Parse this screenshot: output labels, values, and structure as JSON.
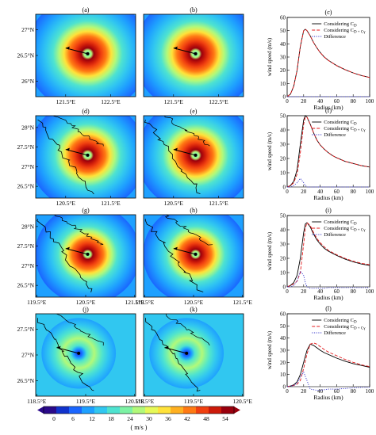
{
  "chart_data": {
    "type": "figure",
    "colorbar": {
      "ticks": [
        "0",
        "6",
        "12",
        "18",
        "24",
        "30",
        "36",
        "42",
        "48",
        "54"
      ],
      "unit": "( m/s )",
      "colors": [
        "#2a0a8a",
        "#1133cc",
        "#1a66ff",
        "#1ea0ff",
        "#31c7f0",
        "#4ee3d0",
        "#7df2a4",
        "#b2f97a",
        "#e6f957",
        "#ffe23a",
        "#ffb020",
        "#ff7a14",
        "#f04010",
        "#cc1a0a",
        "#99000d"
      ]
    },
    "maps": [
      {
        "label": "(a)",
        "yticks": [
          "27°N",
          "26.5°N",
          "26°N"
        ],
        "xticks": [
          "121.5°E",
          "122.5°E"
        ],
        "has_coast": false,
        "size": 1.0,
        "weak_center": false
      },
      {
        "label": "(b)",
        "yticks": [],
        "xticks": [
          "121.5°E",
          "122.5°E"
        ],
        "has_coast": false,
        "size": 1.0,
        "weak_center": false
      },
      {
        "label": "(d)",
        "yticks": [
          "28°N",
          "27.5°N",
          "27°N",
          "26.5°N"
        ],
        "xticks": [
          "120.5°E",
          "121.5°E"
        ],
        "has_coast": true,
        "size": 0.95,
        "weak_center": false
      },
      {
        "label": "(e)",
        "yticks": [],
        "xticks": [
          "120.5°E",
          "121.5°E"
        ],
        "has_coast": true,
        "size": 0.95,
        "weak_center": false
      },
      {
        "label": "(g)",
        "yticks": [
          "28°N",
          "27.5°N",
          "27°N",
          "26.5°N"
        ],
        "xticks": [
          "119.5°E",
          "120.5°E",
          "121.5°E"
        ],
        "has_coast": true,
        "size": 0.85,
        "weak_center": false
      },
      {
        "label": "(h)",
        "yticks": [],
        "xticks": [
          "119.5°E",
          "120.5°E",
          "121.5°E"
        ],
        "has_coast": true,
        "size": 0.85,
        "weak_center": false
      },
      {
        "label": "(j)",
        "yticks": [
          "27.5°N",
          "27°N",
          "26.5°N"
        ],
        "xticks": [
          "118.5°E",
          "119.5°E",
          "120.5°E"
        ],
        "has_coast": true,
        "size": 0.6,
        "weak_center": true
      },
      {
        "label": "(k)",
        "yticks": [],
        "xticks": [
          "118.5°E",
          "119.5°E",
          "120.5°E"
        ],
        "has_coast": true,
        "size": 0.6,
        "weak_center": true
      }
    ],
    "profiles": [
      {
        "label": "(c)",
        "xlabel": "Radius (km)",
        "ylabel": "wind speed (m/s)",
        "xlim": [
          0,
          100
        ],
        "ylim": [
          0,
          60
        ],
        "xticks": [
          "0",
          "20",
          "40",
          "60",
          "80",
          "100"
        ],
        "yticks": [
          "0",
          "10",
          "20",
          "30",
          "40",
          "50",
          "60"
        ],
        "legend": [
          "Considering C",
          "Considering C",
          "Difference"
        ],
        "legend_subs": [
          "D",
          "D + C"
        ],
        "legend_extra": [
          "",
          "γ"
        ],
        "x": [
          0,
          4,
          8,
          12,
          16,
          20,
          22,
          24,
          28,
          32,
          36,
          40,
          45,
          50,
          55,
          60,
          70,
          80,
          90,
          100
        ],
        "series": [
          {
            "style": "solid",
            "color": "#000000",
            "values": [
              0,
              2,
              8,
              20,
              38,
              50,
              51,
              50,
              46,
              41,
              37,
              33.5,
              30,
              27.5,
              25.5,
              23.5,
              20.5,
              18,
              16,
              14.5
            ]
          },
          {
            "style": "dashed",
            "color": "#e41a1c",
            "values": [
              0,
              2,
              8,
              20,
              38,
              50,
              51,
              50,
              46,
              41,
              37,
              33.5,
              30,
              27.5,
              25.5,
              23.5,
              20.5,
              18,
              16,
              14.5
            ]
          },
          {
            "style": "dotted",
            "color": "#3a3acc",
            "values": [
              0,
              0,
              0,
              0,
              0,
              0,
              0,
              0,
              0,
              0,
              0,
              0,
              0,
              0,
              0,
              0,
              0,
              0,
              0,
              0
            ]
          }
        ]
      },
      {
        "label": "(f)",
        "xlabel": "Radius (km)",
        "ylabel": "wind speed (m/s)",
        "xlim": [
          0,
          100
        ],
        "ylim": [
          0,
          50
        ],
        "xticks": [
          "0",
          "20",
          "40",
          "60",
          "80",
          "100"
        ],
        "yticks": [
          "0",
          "10",
          "20",
          "30",
          "40",
          "50"
        ],
        "legend": [
          "Considering C",
          "Considering C",
          "Difference"
        ],
        "legend_subs": [
          "D",
          "D + C"
        ],
        "legend_extra": [
          "",
          "γ"
        ],
        "x": [
          0,
          4,
          8,
          12,
          16,
          20,
          22,
          24,
          28,
          32,
          36,
          40,
          45,
          50,
          55,
          60,
          70,
          80,
          90,
          100
        ],
        "series": [
          {
            "style": "solid",
            "color": "#000000",
            "values": [
              0,
              1,
              4,
              12,
              30,
              47,
              50,
              49,
              44,
              38,
              33,
              29.5,
              26.5,
              24,
              22,
              20.5,
              18,
              16.5,
              15,
              14
            ]
          },
          {
            "style": "dashed",
            "color": "#e41a1c",
            "values": [
              0,
              1,
              3,
              9,
              24,
              44,
              49,
              49,
              44,
              38,
              33,
              29.5,
              26.5,
              24,
              22,
              20.5,
              18,
              16.5,
              15,
              14
            ]
          },
          {
            "style": "dotted",
            "color": "#3a3acc",
            "values": [
              0,
              0,
              1,
              3,
              6,
              3,
              1,
              0,
              0,
              0,
              0,
              0,
              0,
              0,
              0,
              0,
              0,
              0,
              0,
              0
            ]
          }
        ]
      },
      {
        "label": "(i)",
        "xlabel": "Radius (km)",
        "ylabel": "wind speed (m/s)",
        "xlim": [
          0,
          100
        ],
        "ylim": [
          0,
          50
        ],
        "xticks": [
          "0",
          "20",
          "40",
          "60",
          "80",
          "100"
        ],
        "yticks": [
          "0",
          "10",
          "20",
          "30",
          "40",
          "50"
        ],
        "legend": [
          "Considering C",
          "Considering C",
          "Difference"
        ],
        "legend_subs": [
          "D",
          "D + C"
        ],
        "legend_extra": [
          "",
          "γ"
        ],
        "x": [
          0,
          4,
          8,
          12,
          16,
          20,
          22,
          24,
          28,
          32,
          36,
          40,
          45,
          50,
          55,
          60,
          70,
          80,
          90,
          100
        ],
        "series": [
          {
            "style": "solid",
            "color": "#000000",
            "values": [
              0,
              1,
              3,
              8,
              20,
              38,
              44,
              45,
              42,
              37,
              33,
              30,
              27,
              25,
              23.5,
              22,
              19.5,
              17.5,
              16,
              15
            ]
          },
          {
            "style": "dashed",
            "color": "#e41a1c",
            "values": [
              0,
              1,
              2,
              4,
              10,
              30,
              41,
              45,
              43,
              38,
              34,
              31,
              28,
              25.5,
              24,
              22.5,
              20,
              18,
              16.5,
              15.5
            ]
          },
          {
            "style": "dotted",
            "color": "#3a3acc",
            "values": [
              0,
              0,
              1,
              4,
              11,
              8,
              3,
              0,
              -1,
              -1,
              -1,
              -1,
              -1,
              -0.5,
              -0.5,
              -0.5,
              -0.5,
              -0.5,
              -0.5,
              -0.5
            ]
          }
        ]
      },
      {
        "label": "(l)",
        "xlabel": "Radius (km)",
        "ylabel": "wind speed (m/s)",
        "xlim": [
          0,
          100
        ],
        "ylim": [
          0,
          60
        ],
        "xticks": [
          "0",
          "20",
          "40",
          "60",
          "80",
          "100"
        ],
        "yticks": [
          "0",
          "10",
          "20",
          "30",
          "40",
          "50",
          "60"
        ],
        "legend": [
          "Considering C",
          "Considering C",
          "Difference"
        ],
        "legend_subs": [
          "D",
          "D + C"
        ],
        "legend_extra": [
          "",
          "γ"
        ],
        "x": [
          0,
          4,
          8,
          12,
          16,
          20,
          24,
          28,
          32,
          36,
          40,
          45,
          50,
          55,
          60,
          70,
          80,
          90,
          100
        ],
        "series": [
          {
            "style": "solid",
            "color": "#000000",
            "values": [
              0,
              0.5,
              1.5,
              4,
              10,
              20,
              30,
              35,
              34,
              32,
              30,
              28,
              26.5,
              25,
              23.5,
              21,
              19,
              17.5,
              16
            ]
          },
          {
            "style": "dashed",
            "color": "#e41a1c",
            "values": [
              0,
              0.5,
              1,
              2,
              5,
              15,
              27,
              35,
              36,
              35,
              33,
              30.5,
              28.5,
              27,
              25.5,
              22.5,
              20,
              18,
              16.5
            ]
          },
          {
            "style": "dotted",
            "color": "#3a3acc",
            "values": [
              0,
              0.5,
              1,
              3,
              8,
              12,
              5,
              -2,
              -2.5,
              -3,
              -3,
              -2.5,
              -2,
              -2,
              -2,
              -1.5,
              -1,
              -0.5,
              -0.5
            ]
          }
        ]
      }
    ]
  }
}
